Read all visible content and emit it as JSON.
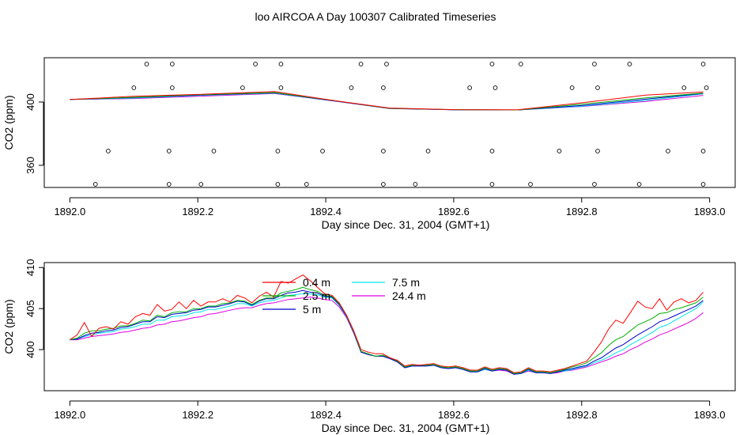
{
  "title": "loo AIRCOA A  Day 100307  Calibrated Timeseries",
  "colors": {
    "0.4 m": "#ff0000",
    "2.5 m": "#00b000",
    "5 m": "#0000cc",
    "7.5 m": "#00e5e5",
    "24.4 m": "#e000e0"
  },
  "chart_data": [
    {
      "type": "line",
      "xlabel": "Day since Dec. 31, 2004 (GMT+1)",
      "ylabel": "CO2 (ppm)",
      "xlim": [
        1892.0,
        1893.0
      ],
      "ylim": [
        346,
        428
      ],
      "xticks": [
        "1892.0",
        "1892.2",
        "1892.4",
        "1892.6",
        "1892.8",
        "1893.0"
      ],
      "yticks": [
        "360",
        "400"
      ],
      "series": [
        {
          "name": "0.4 m",
          "x": [
            1892.0,
            1892.1,
            1892.2,
            1892.32,
            1892.42,
            1892.5,
            1892.6,
            1892.7,
            1892.8,
            1892.9,
            1892.99
          ],
          "y": [
            401.6,
            403.6,
            404.8,
            406.6,
            400.5,
            396.2,
            395.2,
            395.1,
            399.5,
            404.4,
            406.4
          ]
        },
        {
          "name": "2.5 m",
          "x": [
            1892.0,
            1892.1,
            1892.2,
            1892.32,
            1892.42,
            1892.5,
            1892.6,
            1892.7,
            1892.8,
            1892.9,
            1892.99
          ],
          "y": [
            401.6,
            403.0,
            404.6,
            406.0,
            400.5,
            396.0,
            395.2,
            395.0,
            398.6,
            402.6,
            405.6
          ]
        },
        {
          "name": "5 m",
          "x": [
            1892.0,
            1892.1,
            1892.2,
            1892.32,
            1892.42,
            1892.5,
            1892.6,
            1892.7,
            1892.8,
            1892.9,
            1892.99
          ],
          "y": [
            401.6,
            402.8,
            404.4,
            405.8,
            400.3,
            395.9,
            395.1,
            395.0,
            397.8,
            401.8,
            405.4
          ]
        },
        {
          "name": "7.5 m",
          "x": [
            1892.0,
            1892.1,
            1892.2,
            1892.32,
            1892.42,
            1892.5,
            1892.6,
            1892.7,
            1892.8,
            1892.9,
            1892.99
          ],
          "y": [
            401.6,
            402.5,
            404.1,
            405.6,
            400.3,
            396.0,
            395.1,
            395.0,
            397.4,
            401.0,
            405.2
          ]
        },
        {
          "name": "24.4 m",
          "x": [
            1892.0,
            1892.1,
            1892.2,
            1892.32,
            1892.42,
            1892.5,
            1892.6,
            1892.7,
            1892.8,
            1892.9,
            1892.99
          ],
          "y": [
            401.6,
            402.2,
            403.6,
            405.4,
            400.3,
            396.0,
            395.1,
            395.0,
            397.2,
            400.4,
            404.2
          ]
        }
      ],
      "points": {
        "x": [
          1892.04,
          1892.06,
          1892.1,
          1892.12,
          1892.155,
          1892.155,
          1892.16,
          1892.16,
          1892.205,
          1892.225,
          1892.27,
          1892.29,
          1892.325,
          1892.325,
          1892.33,
          1892.33,
          1892.37,
          1892.395,
          1892.44,
          1892.455,
          1892.49,
          1892.49,
          1892.49,
          1892.495,
          1892.54,
          1892.56,
          1892.625,
          1892.66,
          1892.66,
          1892.66,
          1892.665,
          1892.705,
          1892.72,
          1892.765,
          1892.785,
          1892.82,
          1892.82,
          1892.825,
          1892.825,
          1892.875,
          1892.89,
          1892.935,
          1892.96,
          1892.99,
          1892.99,
          1892.99,
          1892.995
        ],
        "y": [
          348,
          369,
          409,
          424,
          348,
          369,
          409,
          424,
          348,
          369,
          409,
          424,
          348,
          369,
          409,
          424,
          348,
          369,
          409,
          424,
          348,
          369,
          409,
          424,
          348,
          369,
          409,
          424,
          348,
          369,
          409,
          424,
          348,
          369,
          409,
          424,
          348,
          369,
          409,
          424,
          348,
          369,
          409,
          424,
          348,
          369,
          409
        ]
      }
    },
    {
      "type": "line",
      "xlabel": "Day since Dec. 31, 2004 (GMT+1)",
      "ylabel": "CO2 (ppm)",
      "xlim": [
        1892.0,
        1893.0
      ],
      "ylim": [
        395,
        410.6
      ],
      "xticks": [
        "1892.0",
        "1892.2",
        "1892.4",
        "1892.6",
        "1892.8",
        "1893.0"
      ],
      "yticks": [
        "400",
        "405",
        "410"
      ],
      "legend": {
        "position": "top-center",
        "entries": [
          "0.4 m",
          "2.5 m",
          "5 m",
          "7.5 m",
          "24.4 m"
        ]
      },
      "series": [
        {
          "name": "0.4 m",
          "values": [
            401.2,
            401.8,
            403.3,
            401.6,
            402.6,
            402.8,
            402.5,
            403.4,
            403.1,
            404.0,
            404.4,
            404.2,
            405.5,
            404.7,
            404.9,
            405.8,
            405.0,
            406.0,
            405.3,
            405.8,
            405.8,
            406.2,
            405.8,
            406.6,
            406.3,
            405.7,
            406.5,
            407.0,
            406.4,
            408.3,
            408.1,
            408.6,
            409.1,
            408.4,
            407.6,
            406.8,
            406.6,
            405.7,
            404.2,
            402.3,
            400.0,
            399.7,
            399.5,
            399.5,
            399.0,
            398.7,
            398.0,
            398.2,
            398.1,
            398.2,
            398.3,
            398.0,
            397.9,
            398.0,
            397.8,
            397.5,
            397.5,
            397.9,
            397.6,
            397.8,
            397.7,
            397.2,
            397.3,
            397.8,
            397.4,
            397.4,
            397.3,
            397.5,
            397.7,
            398.0,
            398.3,
            398.6,
            399.7,
            400.9,
            402.5,
            403.6,
            403.2,
            404.5,
            405.9,
            405.2,
            405.0,
            406.2,
            404.8,
            405.8,
            406.2,
            405.7,
            406.0,
            407.0
          ]
        },
        {
          "name": "2.5 m",
          "values": [
            401.2,
            401.4,
            402.0,
            402.3,
            402.3,
            402.5,
            402.6,
            402.9,
            402.9,
            403.2,
            403.6,
            403.5,
            404.2,
            404.0,
            404.5,
            404.6,
            404.6,
            405.0,
            405.0,
            405.3,
            405.3,
            405.6,
            405.7,
            406.0,
            405.9,
            405.5,
            406.0,
            406.3,
            406.3,
            406.9,
            407.1,
            407.3,
            407.6,
            407.3,
            407.1,
            406.6,
            406.5,
            405.6,
            404.2,
            402.2,
            399.8,
            399.5,
            399.2,
            399.3,
            399.0,
            398.6,
            397.9,
            398.1,
            398.1,
            398.1,
            398.2,
            397.9,
            397.8,
            397.9,
            397.7,
            397.4,
            397.4,
            397.8,
            397.5,
            397.7,
            397.6,
            397.1,
            397.2,
            397.7,
            397.3,
            397.3,
            397.2,
            397.4,
            397.6,
            397.9,
            398.1,
            398.4,
            399.0,
            399.6,
            400.5,
            401.2,
            401.6,
            402.3,
            403.0,
            403.4,
            403.8,
            404.4,
            404.5,
            404.9,
            405.1,
            405.4,
            405.7,
            406.4
          ]
        },
        {
          "name": "5 m",
          "values": [
            401.2,
            401.3,
            401.7,
            402.0,
            402.1,
            402.3,
            402.4,
            402.7,
            402.8,
            403.1,
            403.4,
            403.4,
            404.0,
            403.9,
            404.3,
            404.4,
            404.5,
            404.8,
            404.9,
            405.2,
            405.2,
            405.4,
            405.6,
            405.9,
            405.8,
            405.4,
            405.9,
            406.2,
            406.2,
            406.6,
            406.9,
            407.0,
            407.2,
            407.0,
            406.9,
            406.5,
            406.4,
            405.5,
            404.1,
            402.1,
            399.7,
            399.4,
            399.2,
            399.2,
            398.9,
            398.5,
            397.8,
            398.0,
            398.0,
            398.0,
            398.1,
            397.8,
            397.7,
            397.8,
            397.6,
            397.3,
            397.3,
            397.7,
            397.4,
            397.6,
            397.5,
            397.0,
            397.1,
            397.6,
            397.2,
            397.2,
            397.1,
            397.3,
            397.5,
            397.7,
            397.9,
            398.1,
            398.6,
            399.0,
            399.6,
            400.2,
            400.6,
            401.2,
            401.8,
            402.3,
            402.8,
            403.4,
            403.7,
            404.1,
            404.5,
            404.9,
            405.3,
            406.0
          ]
        },
        {
          "name": "7.5 m",
          "values": [
            401.2,
            401.3,
            401.6,
            401.8,
            402.0,
            402.1,
            402.2,
            402.5,
            402.6,
            402.8,
            403.1,
            403.1,
            403.6,
            403.6,
            404.0,
            404.1,
            404.2,
            404.5,
            404.6,
            404.9,
            404.9,
            405.1,
            405.3,
            405.6,
            405.6,
            405.3,
            405.7,
            405.9,
            406.0,
            406.3,
            406.6,
            406.7,
            406.8,
            406.8,
            406.7,
            406.4,
            406.3,
            405.4,
            404.0,
            402.1,
            399.7,
            399.5,
            399.2,
            399.3,
            398.9,
            398.5,
            397.8,
            398.0,
            398.0,
            398.0,
            398.1,
            397.8,
            397.7,
            397.8,
            397.6,
            397.3,
            397.3,
            397.6,
            397.4,
            397.6,
            397.5,
            397.0,
            397.1,
            397.5,
            397.2,
            397.2,
            397.1,
            397.3,
            397.4,
            397.6,
            397.8,
            398.0,
            398.4,
            398.7,
            399.1,
            399.6,
            400.0,
            400.6,
            401.1,
            401.6,
            402.1,
            402.7,
            403.0,
            403.5,
            404.0,
            404.5,
            405.0,
            405.8
          ]
        },
        {
          "name": "24.4 m",
          "values": [
            401.2,
            401.2,
            401.4,
            401.6,
            401.7,
            401.8,
            401.9,
            402.1,
            402.2,
            402.4,
            402.6,
            402.7,
            403.0,
            403.1,
            403.4,
            403.5,
            403.7,
            403.9,
            404.0,
            404.3,
            404.4,
            404.6,
            404.8,
            405.0,
            405.1,
            405.1,
            405.4,
            405.6,
            405.7,
            405.9,
            406.1,
            406.2,
            406.3,
            406.4,
            406.3,
            406.1,
            406.0,
            405.2,
            403.9,
            402.0,
            399.7,
            399.4,
            399.2,
            399.2,
            398.9,
            398.5,
            397.8,
            398.0,
            398.0,
            398.0,
            398.1,
            397.8,
            397.7,
            397.8,
            397.6,
            397.3,
            397.3,
            397.6,
            397.4,
            397.5,
            397.4,
            397.0,
            397.1,
            397.4,
            397.2,
            397.2,
            397.1,
            397.2,
            397.4,
            397.5,
            397.7,
            397.9,
            398.2,
            398.5,
            398.8,
            399.2,
            399.5,
            400.0,
            400.4,
            400.9,
            401.3,
            401.8,
            402.1,
            402.5,
            402.9,
            403.3,
            403.8,
            404.5
          ]
        }
      ],
      "x_range_series": [
        1892.0,
        1892.99
      ]
    }
  ]
}
